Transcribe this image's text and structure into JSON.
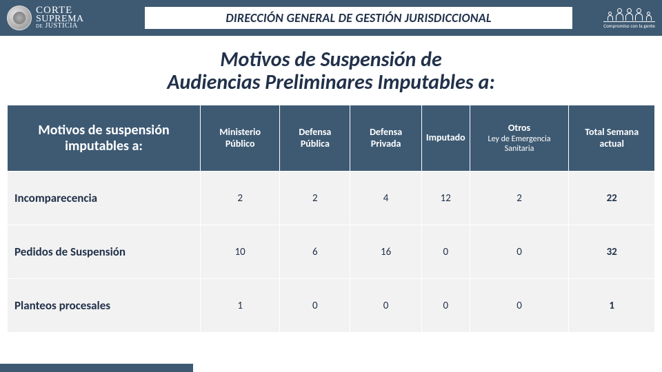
{
  "header": {
    "org_line1": "CORTE",
    "org_line2": "SUPREMA",
    "org_line3_de": "DE",
    "org_line3": "JUSTICIA",
    "direction_title": "DIRECCIÓN GENERAL DE GESTIÓN JURISDICCIONAL",
    "tagline": "Compromiso con la gente"
  },
  "page_title_line1": "Motivos de Suspensión de",
  "page_title_line2": "Audiencias Preliminares Imputables a:",
  "table": {
    "row_header": "Motivos de suspensión imputables a:",
    "columns": [
      {
        "label": "Ministerio Público",
        "sub": ""
      },
      {
        "label": "Defensa Pública",
        "sub": ""
      },
      {
        "label": "Defensa Privada",
        "sub": ""
      },
      {
        "label": "Imputado",
        "sub": ""
      },
      {
        "label": "Otros",
        "sub": "Ley de Emergencia Sanitaria"
      },
      {
        "label": "Total Semana actual",
        "sub": ""
      }
    ],
    "rows": [
      {
        "label": "Incomparecencia",
        "values": [
          "2",
          "2",
          "4",
          "12",
          "2",
          "22"
        ]
      },
      {
        "label": "Pedidos de Suspensión",
        "values": [
          "10",
          "6",
          "16",
          "0",
          "0",
          "32"
        ]
      },
      {
        "label": "Planteos procesales",
        "values": [
          "1",
          "0",
          "0",
          "0",
          "0",
          "1"
        ]
      }
    ]
  },
  "colors": {
    "header_bg": "#3e5a73",
    "text_dark": "#22314a",
    "row_bg": "#f2f2f2"
  }
}
